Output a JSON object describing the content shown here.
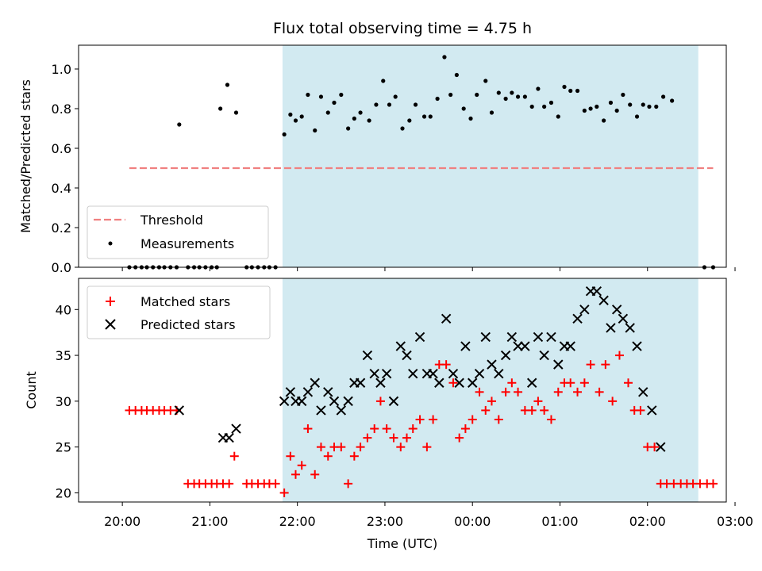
{
  "chart_data": [
    {
      "type": "scatter",
      "title": "Flux total observing time = 4.75 h",
      "xlabel": "",
      "ylabel": "Matched/Predicted stars",
      "x_unit": "hours since 20:00 UTC (day 1); values above 4.0 are after 00:00 of day 2",
      "xlim": [
        -0.5,
        6.9
      ],
      "ylim": [
        0,
        1.12
      ],
      "yticks": [
        "0.0",
        "0.2",
        "0.4",
        "0.6",
        "0.8",
        "1.0"
      ],
      "shaded_span": [
        1.83,
        6.58
      ],
      "shade_color": "#add8e6",
      "threshold": {
        "label": "Threshold",
        "value": 0.5,
        "x_range": [
          0.08,
          6.75
        ],
        "color": "#f08080"
      },
      "measurements_label": "Measurements",
      "legend_position": "lower left",
      "series": [
        {
          "name": "Measurements",
          "points": [
            [
              0.08,
              0
            ],
            [
              0.15,
              0
            ],
            [
              0.22,
              0
            ],
            [
              0.28,
              0
            ],
            [
              0.35,
              0
            ],
            [
              0.42,
              0
            ],
            [
              0.48,
              0
            ],
            [
              0.55,
              0
            ],
            [
              0.62,
              0
            ],
            [
              0.65,
              0.72
            ],
            [
              0.75,
              0
            ],
            [
              0.82,
              0
            ],
            [
              0.88,
              0
            ],
            [
              0.95,
              0
            ],
            [
              1.02,
              0
            ],
            [
              1.08,
              0
            ],
            [
              1.12,
              0.8
            ],
            [
              1.2,
              0.92
            ],
            [
              1.3,
              0.78
            ],
            [
              1.42,
              0
            ],
            [
              1.48,
              0
            ],
            [
              1.55,
              0
            ],
            [
              1.62,
              0
            ],
            [
              1.68,
              0
            ],
            [
              1.75,
              0
            ],
            [
              1.85,
              0.67
            ],
            [
              1.92,
              0.77
            ],
            [
              1.98,
              0.74
            ],
            [
              2.05,
              0.76
            ],
            [
              2.12,
              0.87
            ],
            [
              2.2,
              0.69
            ],
            [
              2.27,
              0.86
            ],
            [
              2.35,
              0.78
            ],
            [
              2.42,
              0.83
            ],
            [
              2.5,
              0.87
            ],
            [
              2.58,
              0.7
            ],
            [
              2.65,
              0.75
            ],
            [
              2.72,
              0.78
            ],
            [
              2.82,
              0.74
            ],
            [
              2.9,
              0.82
            ],
            [
              2.98,
              0.94
            ],
            [
              3.05,
              0.82
            ],
            [
              3.12,
              0.86
            ],
            [
              3.2,
              0.7
            ],
            [
              3.28,
              0.74
            ],
            [
              3.35,
              0.82
            ],
            [
              3.45,
              0.76
            ],
            [
              3.52,
              0.76
            ],
            [
              3.6,
              0.85
            ],
            [
              3.68,
              1.06
            ],
            [
              3.75,
              0.87
            ],
            [
              3.82,
              0.97
            ],
            [
              3.9,
              0.8
            ],
            [
              3.98,
              0.75
            ],
            [
              4.05,
              0.87
            ],
            [
              4.15,
              0.94
            ],
            [
              4.22,
              0.78
            ],
            [
              4.3,
              0.88
            ],
            [
              4.38,
              0.85
            ],
            [
              4.45,
              0.88
            ],
            [
              4.52,
              0.86
            ],
            [
              4.6,
              0.86
            ],
            [
              4.68,
              0.81
            ],
            [
              4.75,
              0.9
            ],
            [
              4.82,
              0.81
            ],
            [
              4.9,
              0.83
            ],
            [
              4.98,
              0.76
            ],
            [
              5.05,
              0.91
            ],
            [
              5.12,
              0.89
            ],
            [
              5.2,
              0.89
            ],
            [
              5.28,
              0.79
            ],
            [
              5.35,
              0.8
            ],
            [
              5.42,
              0.81
            ],
            [
              5.5,
              0.74
            ],
            [
              5.58,
              0.83
            ],
            [
              5.65,
              0.79
            ],
            [
              5.72,
              0.87
            ],
            [
              5.8,
              0.82
            ],
            [
              5.88,
              0.76
            ],
            [
              5.95,
              0.82
            ],
            [
              6.02,
              0.81
            ],
            [
              6.1,
              0.81
            ],
            [
              6.18,
              0.86
            ],
            [
              6.28,
              0.84
            ],
            [
              6.65,
              0
            ],
            [
              6.75,
              0
            ]
          ]
        }
      ]
    },
    {
      "type": "scatter",
      "title": "",
      "xlabel": "Time (UTC)",
      "ylabel": "Count",
      "x_unit": "hours since 20:00 UTC (day 1); values above 4.0 are after 00:00 of day 2",
      "xlim": [
        -0.5,
        6.9
      ],
      "ylim": [
        19,
        43.4
      ],
      "yticks": [
        "20",
        "25",
        "30",
        "35",
        "40"
      ],
      "xticks": [
        "20:00",
        "21:00",
        "22:00",
        "23:00",
        "00:00",
        "01:00",
        "02:00",
        "03:00"
      ],
      "shaded_span": [
        1.83,
        6.58
      ],
      "legend_position": "upper left",
      "series": [
        {
          "name": "Matched stars",
          "color": "#ff0000",
          "marker": "plus",
          "points": [
            [
              0.08,
              29
            ],
            [
              0.15,
              29
            ],
            [
              0.22,
              29
            ],
            [
              0.28,
              29
            ],
            [
              0.35,
              29
            ],
            [
              0.42,
              29
            ],
            [
              0.48,
              29
            ],
            [
              0.55,
              29
            ],
            [
              0.62,
              29
            ],
            [
              0.75,
              21
            ],
            [
              0.82,
              21
            ],
            [
              0.88,
              21
            ],
            [
              0.95,
              21
            ],
            [
              1.02,
              21
            ],
            [
              1.08,
              21
            ],
            [
              1.15,
              21
            ],
            [
              1.22,
              21
            ],
            [
              1.28,
              24
            ],
            [
              1.42,
              21
            ],
            [
              1.48,
              21
            ],
            [
              1.55,
              21
            ],
            [
              1.62,
              21
            ],
            [
              1.68,
              21
            ],
            [
              1.75,
              21
            ],
            [
              1.85,
              20
            ],
            [
              1.92,
              24
            ],
            [
              1.98,
              22
            ],
            [
              2.05,
              23
            ],
            [
              2.12,
              27
            ],
            [
              2.2,
              22
            ],
            [
              2.27,
              25
            ],
            [
              2.35,
              24
            ],
            [
              2.42,
              25
            ],
            [
              2.5,
              25
            ],
            [
              2.58,
              21
            ],
            [
              2.65,
              24
            ],
            [
              2.72,
              25
            ],
            [
              2.8,
              26
            ],
            [
              2.88,
              27
            ],
            [
              2.95,
              30
            ],
            [
              3.02,
              27
            ],
            [
              3.1,
              26
            ],
            [
              3.18,
              25
            ],
            [
              3.25,
              26
            ],
            [
              3.32,
              27
            ],
            [
              3.4,
              28
            ],
            [
              3.48,
              25
            ],
            [
              3.55,
              28
            ],
            [
              3.62,
              34
            ],
            [
              3.7,
              34
            ],
            [
              3.78,
              32
            ],
            [
              3.85,
              26
            ],
            [
              3.92,
              27
            ],
            [
              4.0,
              28
            ],
            [
              4.08,
              31
            ],
            [
              4.15,
              29
            ],
            [
              4.22,
              30
            ],
            [
              4.3,
              28
            ],
            [
              4.38,
              31
            ],
            [
              4.45,
              32
            ],
            [
              4.52,
              31
            ],
            [
              4.6,
              29
            ],
            [
              4.68,
              29
            ],
            [
              4.75,
              30
            ],
            [
              4.82,
              29
            ],
            [
              4.9,
              28
            ],
            [
              4.98,
              31
            ],
            [
              5.05,
              32
            ],
            [
              5.12,
              32
            ],
            [
              5.2,
              31
            ],
            [
              5.28,
              32
            ],
            [
              5.35,
              34
            ],
            [
              5.45,
              31
            ],
            [
              5.52,
              34
            ],
            [
              5.6,
              30
            ],
            [
              5.68,
              35
            ],
            [
              5.78,
              32
            ],
            [
              5.85,
              29
            ],
            [
              5.92,
              29
            ],
            [
              6.0,
              25
            ],
            [
              6.08,
              25
            ],
            [
              6.15,
              21
            ],
            [
              6.22,
              21
            ],
            [
              6.3,
              21
            ],
            [
              6.38,
              21
            ],
            [
              6.45,
              21
            ],
            [
              6.52,
              21
            ],
            [
              6.6,
              21
            ],
            [
              6.68,
              21
            ],
            [
              6.75,
              21
            ]
          ]
        },
        {
          "name": "Predicted stars",
          "color": "#000000",
          "marker": "x",
          "points": [
            [
              0.65,
              29
            ],
            [
              1.15,
              26
            ],
            [
              1.22,
              26
            ],
            [
              1.3,
              27
            ],
            [
              1.85,
              30
            ],
            [
              1.92,
              31
            ],
            [
              1.98,
              30
            ],
            [
              2.05,
              30
            ],
            [
              2.12,
              31
            ],
            [
              2.2,
              32
            ],
            [
              2.27,
              29
            ],
            [
              2.35,
              31
            ],
            [
              2.42,
              30
            ],
            [
              2.5,
              29
            ],
            [
              2.58,
              30
            ],
            [
              2.65,
              32
            ],
            [
              2.72,
              32
            ],
            [
              2.8,
              35
            ],
            [
              2.88,
              33
            ],
            [
              2.95,
              32
            ],
            [
              3.02,
              33
            ],
            [
              3.1,
              30
            ],
            [
              3.18,
              36
            ],
            [
              3.25,
              35
            ],
            [
              3.32,
              33
            ],
            [
              3.4,
              37
            ],
            [
              3.48,
              33
            ],
            [
              3.55,
              33
            ],
            [
              3.62,
              32
            ],
            [
              3.7,
              39
            ],
            [
              3.78,
              33
            ],
            [
              3.85,
              32
            ],
            [
              3.92,
              36
            ],
            [
              4.0,
              32
            ],
            [
              4.08,
              33
            ],
            [
              4.15,
              37
            ],
            [
              4.22,
              34
            ],
            [
              4.3,
              33
            ],
            [
              4.38,
              35
            ],
            [
              4.45,
              37
            ],
            [
              4.52,
              36
            ],
            [
              4.6,
              36
            ],
            [
              4.68,
              32
            ],
            [
              4.75,
              37
            ],
            [
              4.82,
              35
            ],
            [
              4.9,
              37
            ],
            [
              4.98,
              34
            ],
            [
              5.05,
              36
            ],
            [
              5.12,
              36
            ],
            [
              5.2,
              39
            ],
            [
              5.28,
              40
            ],
            [
              5.35,
              42
            ],
            [
              5.42,
              42
            ],
            [
              5.5,
              41
            ],
            [
              5.58,
              38
            ],
            [
              5.65,
              40
            ],
            [
              5.72,
              39
            ],
            [
              5.8,
              38
            ],
            [
              5.88,
              36
            ],
            [
              5.95,
              31
            ],
            [
              6.05,
              29
            ],
            [
              6.15,
              25
            ]
          ]
        }
      ]
    }
  ]
}
